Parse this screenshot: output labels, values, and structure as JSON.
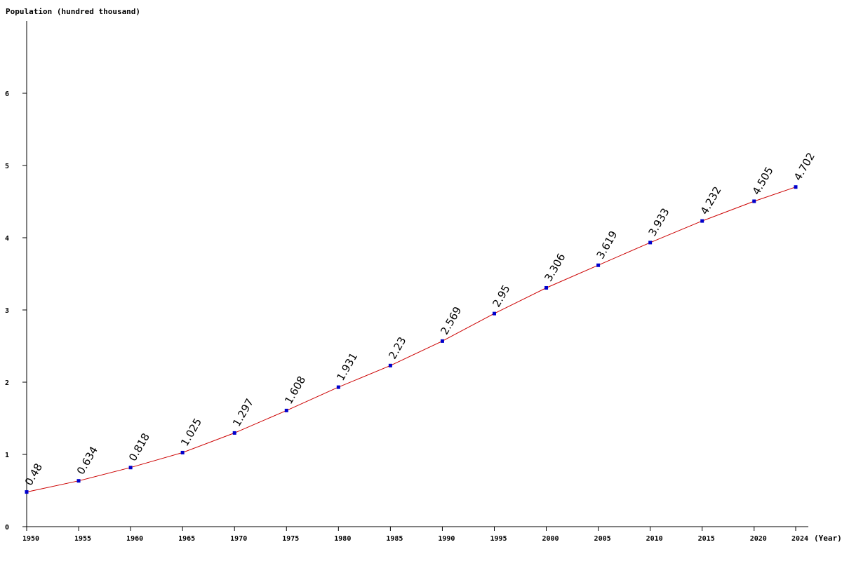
{
  "chart_data": {
    "type": "line",
    "title": "",
    "ylabel": "Population (hundred thousand)",
    "xlabel": "(Year)",
    "x": [
      1950,
      1955,
      1960,
      1965,
      1970,
      1975,
      1980,
      1985,
      1990,
      1995,
      2000,
      2005,
      2010,
      2015,
      2020,
      2024
    ],
    "series": [
      {
        "values": [
          0.48,
          0.634,
          0.818,
          1.025,
          1.297,
          1.608,
          1.931,
          2.23,
          2.569,
          2.95,
          3.306,
          3.619,
          3.933,
          4.232,
          4.505,
          4.702
        ]
      }
    ],
    "data_labels": [
      "0.48",
      "0.634",
      "0.818",
      "1.025",
      "1.297",
      "1.608",
      "1.931",
      "2.23",
      "2.569",
      "2.95",
      "3.306",
      "3.619",
      "3.933",
      "4.232",
      "4.505",
      "4.702"
    ],
    "x_tick_labels": [
      "1950",
      "1955",
      "1960",
      "1965",
      "1970",
      "1975",
      "1980",
      "1985",
      "1990",
      "1995",
      "2000",
      "2005",
      "2010",
      "2015",
      "2020",
      "2024"
    ],
    "y_ticks": [
      0,
      1,
      2,
      3,
      4,
      5,
      6
    ],
    "ylim": [
      0,
      7
    ],
    "grid": false,
    "legend": "none",
    "colors": {
      "line": "#cc0000",
      "point": "#0000cc",
      "axis": "#000000"
    }
  }
}
